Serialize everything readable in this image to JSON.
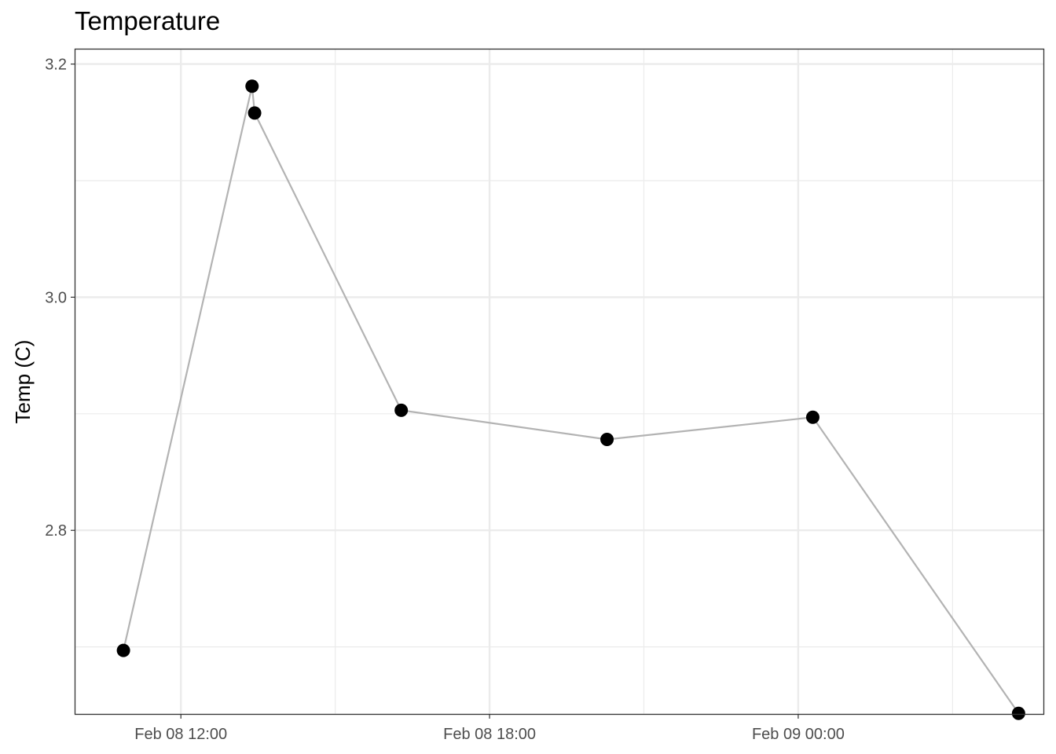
{
  "chart_data": {
    "type": "line",
    "title": "Temperature",
    "xlabel": "",
    "ylabel": "Temp (C)",
    "x_type": "datetime",
    "x_ticks": [
      "2024-02-08T12:00",
      "2024-02-08T18:00",
      "2024-02-09T00:00"
    ],
    "x_tick_labels": [
      "Feb 08 12:00",
      "Feb 08 18:00",
      "Feb 09 00:00"
    ],
    "xlim": [
      "2024-02-08T09:57",
      "2024-02-09T04:46"
    ],
    "y_ticks": [
      2.8,
      3.0,
      3.2
    ],
    "y_tick_labels": [
      "2.8",
      "3.0",
      "3.2"
    ],
    "ylim": [
      2.6425,
      3.2125
    ],
    "grid": true,
    "legend": "none",
    "series": [
      {
        "x": [
          "2024-02-08T10:53",
          "2024-02-08T13:23",
          "2024-02-08T13:26",
          "2024-02-08T16:17",
          "2024-02-08T20:17",
          "2024-02-09T00:17",
          "2024-02-09T04:17"
        ],
        "values": [
          2.697,
          3.181,
          3.158,
          2.903,
          2.878,
          2.897,
          2.643
        ],
        "line_color": "#b3b3b3",
        "marker_color": "#000000"
      }
    ]
  }
}
